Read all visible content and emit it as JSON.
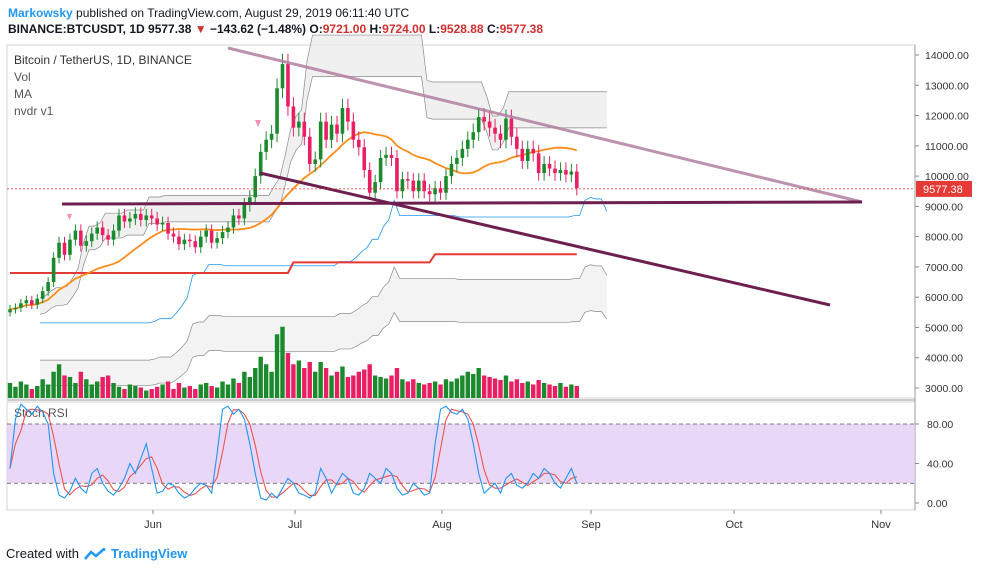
{
  "header": {
    "author": "Markowsky",
    "published_text": "published on TradingView.com, August 29, 2019 06:11:40 UTC",
    "symbol": "BINANCE:BTCUSDT, 1D",
    "last": "9577.38",
    "change": "−143.62 (−1.48%)",
    "ohlc": {
      "o": "9721.00",
      "h": "9724.00",
      "l": "9528.88",
      "c": "9577.38"
    }
  },
  "legend": {
    "title": "Bitcoin / TetherUS, 1D, BINANCE",
    "items": [
      "Vol",
      "MA",
      "nvdr v1"
    ]
  },
  "footer": {
    "prefix": "Created with",
    "brand": "TradingView"
  },
  "colors": {
    "up": "#1b8a2c",
    "down": "#e91e63",
    "ma": "#ff8c1a",
    "resistance": "#b07fa0",
    "support": "#6d1f4f",
    "red_line": "#e53935",
    "band_blue": "#2196f3",
    "rsi_k": "#2196f3",
    "rsi_d": "#ef5350",
    "rsi_band": "#e1c9f5"
  },
  "chart_data": [
    {
      "type": "candlestick",
      "y_ticks": [
        "14000.00",
        "13000.00",
        "12000.00",
        "11000.00",
        "10000.00",
        "9000.00",
        "8000.00",
        "7000.00",
        "6000.00",
        "5000.00",
        "4000.00",
        "3000.00"
      ],
      "ylim": [
        2700,
        14300
      ],
      "x_ticks": [
        "Jun",
        "Jul",
        "Aug",
        "Sep",
        "Oct",
        "Nov"
      ],
      "last_price_label": "9577.38",
      "price_series_daily": [
        5600,
        5650,
        5800,
        5900,
        5750,
        5950,
        6200,
        6500,
        7300,
        7800,
        7400,
        7900,
        8200,
        7700,
        7850,
        8100,
        8300,
        8050,
        7900,
        8200,
        8700,
        8500,
        8600,
        8750,
        8550,
        8700,
        8600,
        8400,
        8450,
        8100,
        8000,
        7750,
        7900,
        7850,
        7650,
        8000,
        8200,
        7800,
        7950,
        8150,
        8300,
        8700,
        8600,
        9050,
        9300,
        10000,
        10800,
        11200,
        11400,
        12900,
        13700,
        12300,
        11600,
        11800,
        11300,
        10400,
        10550,
        11800,
        11200,
        11700,
        11400,
        12250,
        11800,
        11200,
        10950,
        10200,
        9450,
        9800,
        10600,
        10700,
        10600,
        9500,
        9900,
        9850,
        9500,
        9850,
        9500,
        9400,
        9600,
        9450,
        10000,
        10400,
        10600,
        10900,
        11200,
        11450,
        11950,
        11800,
        11600,
        11400,
        11200,
        11900,
        11300,
        10900,
        10500,
        10900,
        10750,
        10100,
        10400,
        10250,
        10100,
        10200,
        10050,
        10150,
        9600
      ]
    },
    {
      "type": "bar",
      "name": "Vol",
      "values_relative": [
        0.2,
        0.15,
        0.22,
        0.18,
        0.12,
        0.16,
        0.25,
        0.18,
        0.35,
        0.45,
        0.3,
        0.28,
        0.2,
        0.35,
        0.25,
        0.18,
        0.22,
        0.28,
        0.3,
        0.2,
        0.15,
        0.12,
        0.18,
        0.16,
        0.14,
        0.1,
        0.12,
        0.15,
        0.18,
        0.22,
        0.12,
        0.2,
        0.14,
        0.16,
        0.12,
        0.18,
        0.2,
        0.16,
        0.14,
        0.22,
        0.18,
        0.26,
        0.2,
        0.35,
        0.28,
        0.4,
        0.55,
        0.45,
        0.35,
        0.85,
        0.95,
        0.6,
        0.45,
        0.5,
        0.4,
        0.48,
        0.35,
        0.48,
        0.4,
        0.3,
        0.35,
        0.42,
        0.28,
        0.3,
        0.35,
        0.38,
        0.45,
        0.3,
        0.28,
        0.26,
        0.3,
        0.4,
        0.25,
        0.22,
        0.25,
        0.2,
        0.18,
        0.2,
        0.22,
        0.18,
        0.25,
        0.22,
        0.26,
        0.3,
        0.35,
        0.32,
        0.4,
        0.3,
        0.28,
        0.26,
        0.24,
        0.3,
        0.22,
        0.25,
        0.2,
        0.22,
        0.18,
        0.24,
        0.2,
        0.18,
        0.16,
        0.2,
        0.15,
        0.18,
        0.16
      ]
    },
    {
      "type": "line",
      "name": "Stoch RSI",
      "y_ticks": [
        "80.00",
        "40.00",
        "0.00"
      ],
      "ylim": [
        -10,
        100
      ],
      "band": [
        20,
        80
      ],
      "k_values": [
        35,
        85,
        100,
        95,
        90,
        98,
        92,
        80,
        30,
        8,
        5,
        12,
        25,
        15,
        10,
        30,
        35,
        20,
        12,
        8,
        15,
        25,
        40,
        30,
        45,
        60,
        35,
        10,
        12,
        20,
        18,
        10,
        5,
        8,
        15,
        20,
        18,
        10,
        50,
        95,
        98,
        90,
        95,
        85,
        60,
        30,
        5,
        3,
        10,
        5,
        15,
        25,
        20,
        10,
        8,
        5,
        10,
        35,
        25,
        10,
        20,
        30,
        25,
        10,
        8,
        15,
        30,
        25,
        20,
        35,
        30,
        15,
        8,
        10,
        20,
        15,
        8,
        10,
        60,
        95,
        98,
        92,
        90,
        95,
        85,
        60,
        30,
        10,
        15,
        20,
        10,
        25,
        30,
        18,
        15,
        20,
        30,
        25,
        35,
        30,
        20,
        15,
        25,
        35,
        20
      ]
    }
  ]
}
